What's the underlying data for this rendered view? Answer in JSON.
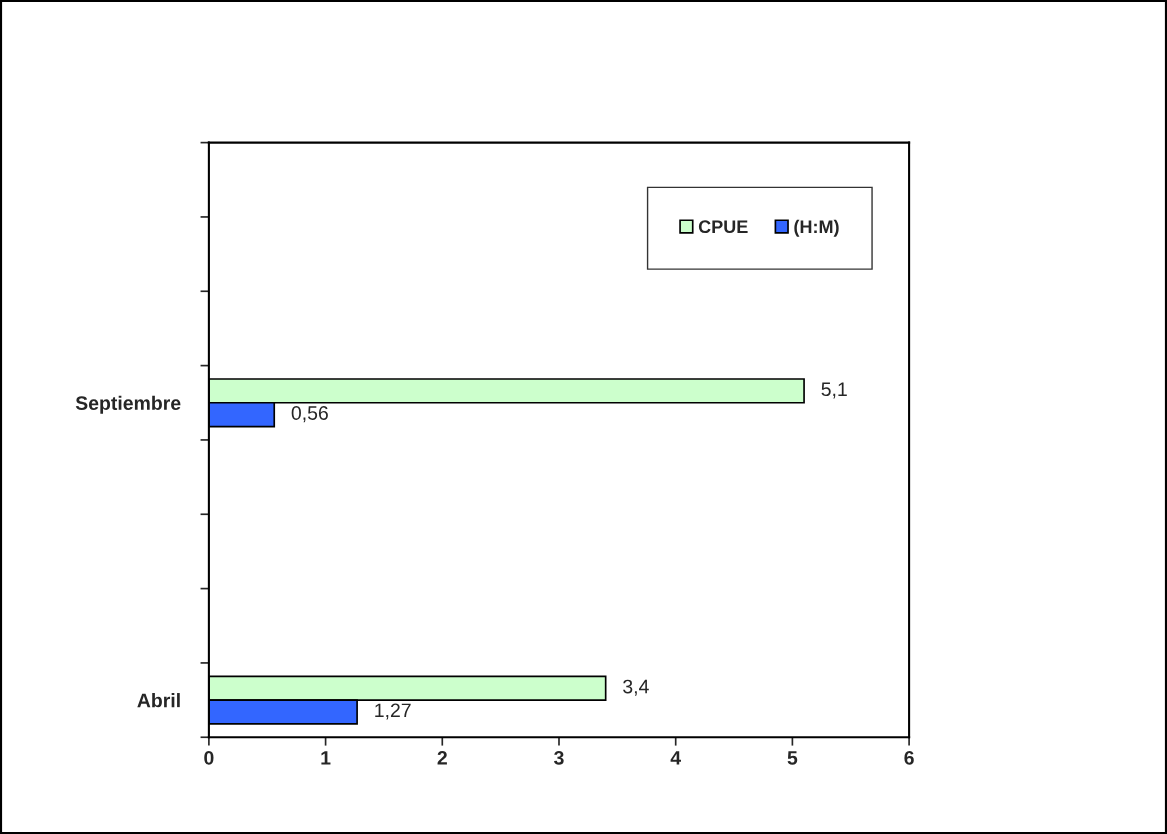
{
  "chart_data": {
    "type": "bar",
    "orientation": "horizontal",
    "categories": [
      null,
      null,
      null,
      "Septiembre",
      null,
      null,
      null,
      "Abril"
    ],
    "series": [
      {
        "name": "CPUE",
        "color": "#ccffcc",
        "values": [
          null,
          null,
          null,
          5.1,
          null,
          null,
          null,
          3.4
        ],
        "value_labels": [
          null,
          null,
          null,
          "5,1",
          null,
          null,
          null,
          "3,4"
        ]
      },
      {
        "name": "(H:M)",
        "color": "#3366ff",
        "values": [
          null,
          null,
          null,
          0.56,
          null,
          null,
          null,
          1.27
        ],
        "value_labels": [
          null,
          null,
          null,
          "0,56",
          null,
          null,
          null,
          "1,27"
        ]
      }
    ],
    "xlim": [
      0,
      6
    ],
    "xticks": [
      0,
      1,
      2,
      3,
      4,
      5,
      6
    ],
    "grid": false,
    "legend": "top right"
  }
}
